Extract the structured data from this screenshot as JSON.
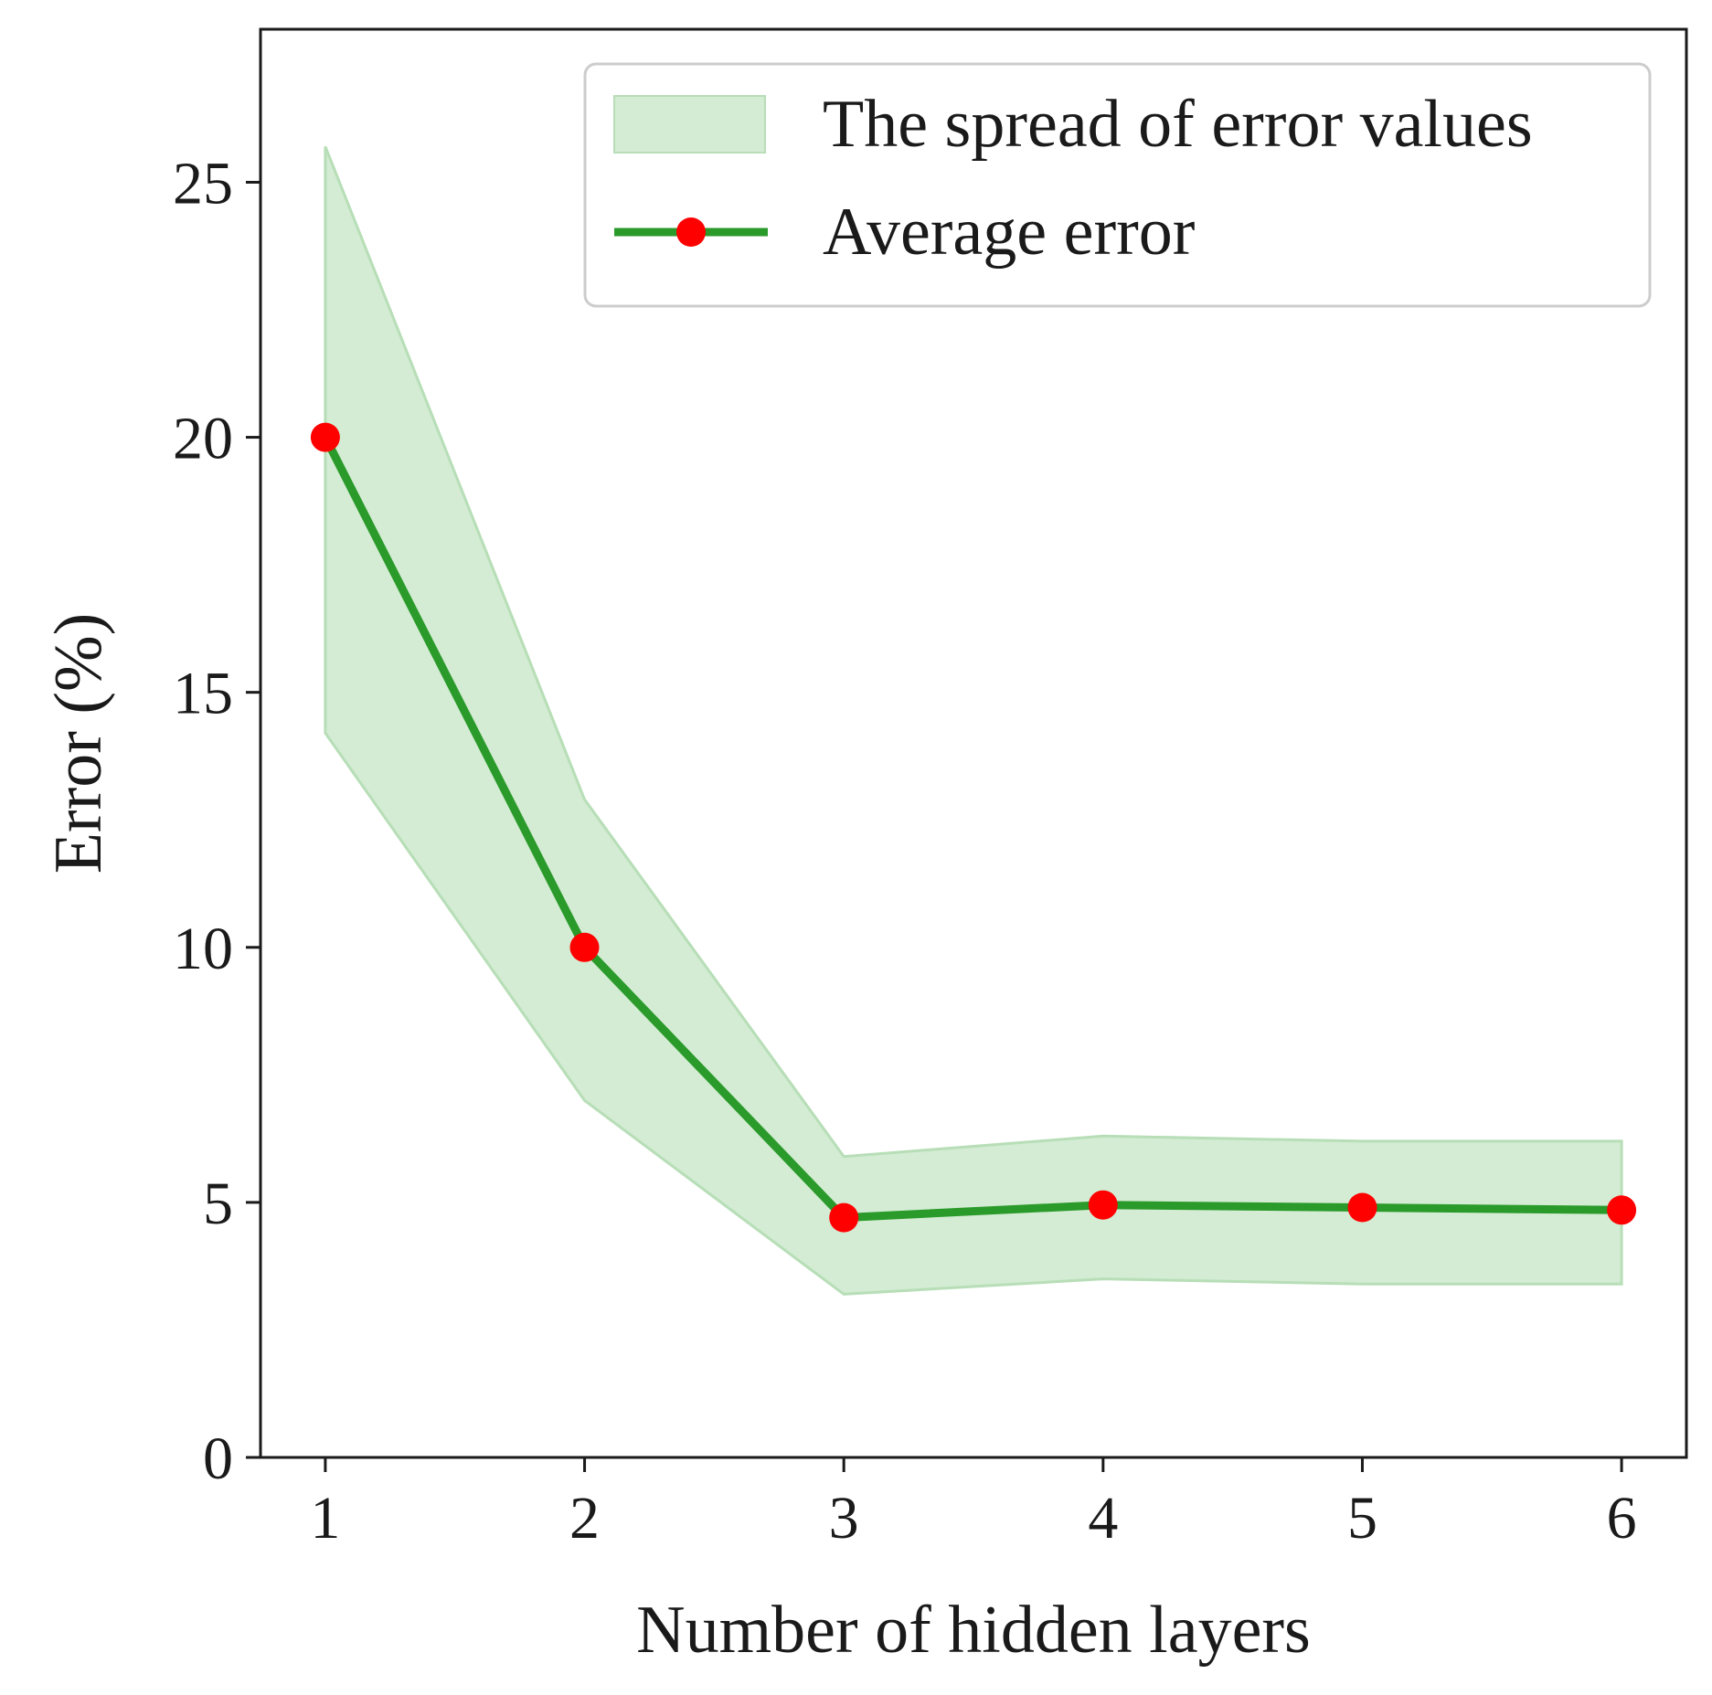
{
  "chart_data": {
    "type": "line",
    "title": "",
    "xlabel": "Number of hidden layers",
    "ylabel": "Error (%)",
    "xlim": [
      0.75,
      6.25
    ],
    "ylim": [
      0,
      28
    ],
    "x_ticks": [
      1,
      2,
      3,
      4,
      5,
      6
    ],
    "x_tick_labels": [
      "1",
      "2",
      "3",
      "4",
      "5",
      "6"
    ],
    "y_ticks": [
      0,
      5,
      10,
      15,
      20,
      25
    ],
    "y_tick_labels": [
      "0",
      "5",
      "10",
      "15",
      "20",
      "25"
    ],
    "grid": false,
    "legend": {
      "position": "top-right",
      "entries": [
        {
          "label": "The spread of error values",
          "kind": "band"
        },
        {
          "label": "Average error",
          "kind": "line-marker"
        }
      ]
    },
    "series": [
      {
        "name": "Average error",
        "x": [
          1,
          2,
          3,
          4,
          5,
          6
        ],
        "y": [
          20.0,
          10.0,
          4.7,
          4.95,
          4.9,
          4.85
        ],
        "line_color": "#2a9a2a",
        "marker_color": "#ff0000"
      }
    ],
    "band": {
      "name": "The spread of error values",
      "x": [
        1,
        2,
        3,
        4,
        5,
        6
      ],
      "upper": [
        25.7,
        12.9,
        5.9,
        6.3,
        6.2,
        6.2
      ],
      "lower": [
        14.2,
        7.0,
        3.2,
        3.5,
        3.4,
        3.4
      ],
      "fill_color": "#d3ecd3",
      "edge_color": "#b7deb7"
    }
  }
}
